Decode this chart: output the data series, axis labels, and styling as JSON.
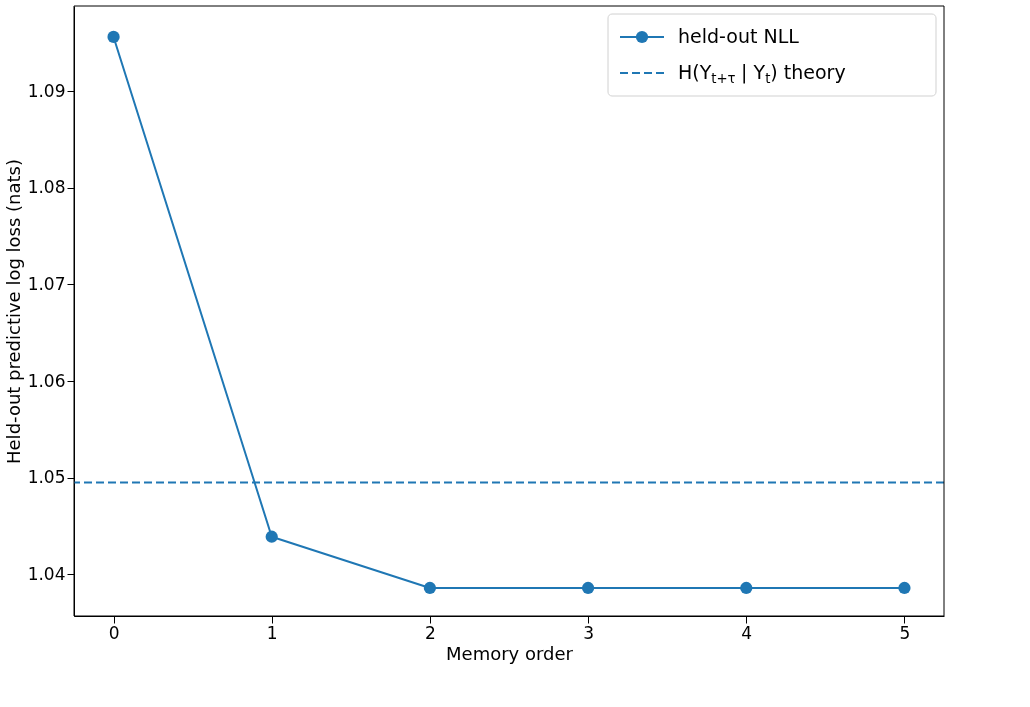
{
  "chart_data": {
    "type": "line",
    "xlabel": "Memory order",
    "ylabel": "Held-out predictive log loss (nats)",
    "x": [
      0,
      1,
      2,
      3,
      4,
      5
    ],
    "series": [
      {
        "name": "held-out NLL",
        "color": "#1f77b4",
        "values": [
          1.0956,
          1.0439,
          1.0386,
          1.0386,
          1.0386,
          1.0386
        ]
      }
    ],
    "ref_lines": [
      {
        "axis": "y",
        "value": 1.0495,
        "label": "H(Y$_{t+τ}$ | Y$_{t}$) theory",
        "color": "#1f77b4",
        "line_style": "dashed"
      }
    ],
    "xlim": [
      -0.25,
      5.25
    ],
    "ylim": [
      1.0357,
      1.0988
    ],
    "xticks": [
      0,
      1,
      2,
      3,
      4,
      5
    ],
    "yticks": [
      1.04,
      1.05,
      1.06,
      1.07,
      1.08,
      1.09
    ],
    "marker": "circle",
    "line_style": "solid",
    "grid": false,
    "legend": "top right"
  }
}
